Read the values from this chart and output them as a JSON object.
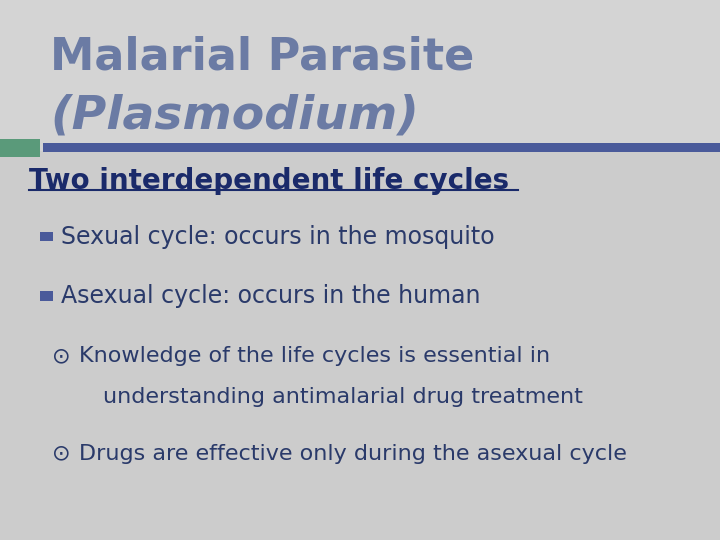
{
  "bg_color": "#cccccc",
  "title_line1": "Malarial Parasite",
  "title_line2": "(Plasmodium)",
  "title_color": "#6b7ba4",
  "divider_color1": "#4a5a9a",
  "divider_color2": "#5a9a7a",
  "heading": "Two interdependent life cycles",
  "heading_color": "#1a2a6a",
  "bullet_color": "#4a5a9a",
  "bullet1": "Sexual cycle: occurs in the mosquito",
  "bullet2": "Asexual cycle: occurs in the human",
  "sub_bullet1_line1": "Knowledge of the life cycles is essential in",
  "sub_bullet1_line2": "understanding antimalarial drug treatment",
  "sub_bullet2": "Drugs are effective only during the asexual cycle",
  "text_color": "#2a3a6a",
  "body_fontsize": 17,
  "heading_fontsize": 20,
  "title_fontsize1": 32,
  "title_fontsize2": 34
}
